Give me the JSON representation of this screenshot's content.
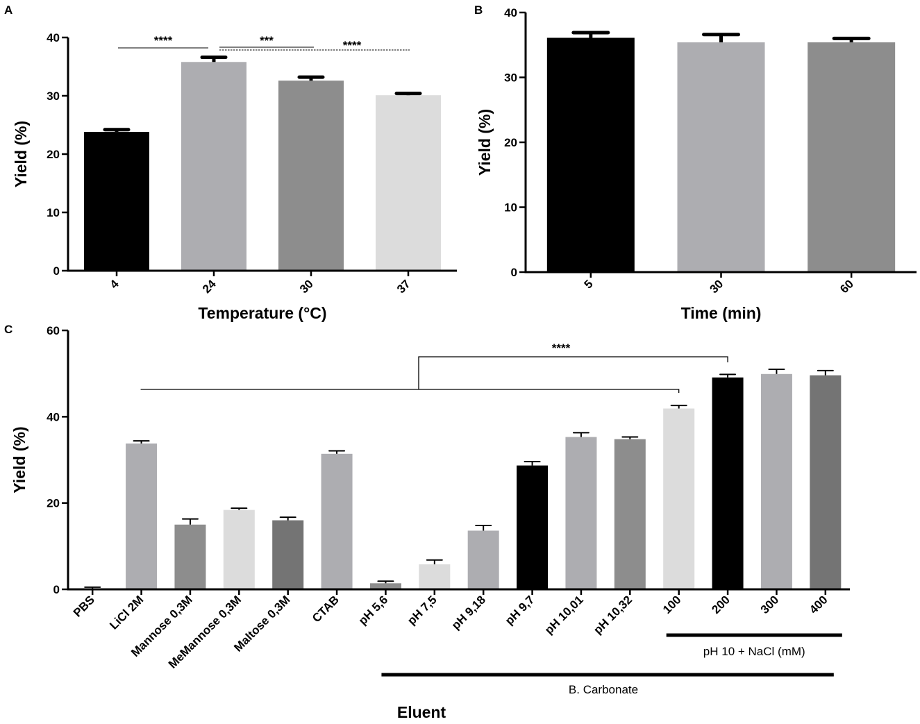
{
  "chart_data": [
    {
      "panel": "A",
      "type": "bar",
      "ylabel": "Yield (%)",
      "xlabel": "Temperature (°C)",
      "ylim": [
        0,
        40
      ],
      "yticks": [
        0,
        10,
        20,
        30,
        40
      ],
      "categories": [
        "4",
        "24",
        "30",
        "37"
      ],
      "values": [
        23.8,
        35.8,
        32.6,
        30.1
      ],
      "errors": [
        0.4,
        0.8,
        0.6,
        0.3
      ],
      "colors": [
        "#000000",
        "#adadb1",
        "#8d8d8d",
        "#dcdcdc"
      ],
      "significance": [
        {
          "from": 0,
          "to": 1,
          "label": "****",
          "style": "solid"
        },
        {
          "from": 1,
          "to": 2,
          "label": "***",
          "style": "solid"
        },
        {
          "from": 1,
          "to": 3,
          "label": "****",
          "style": "dashed"
        }
      ]
    },
    {
      "panel": "B",
      "type": "bar",
      "ylabel": "Yield (%)",
      "xlabel": "Time (min)",
      "ylim": [
        0,
        40
      ],
      "yticks": [
        0,
        10,
        20,
        30,
        40
      ],
      "categories": [
        "5",
        "30",
        "60"
      ],
      "values": [
        36.1,
        35.4,
        35.4
      ],
      "errors": [
        0.8,
        1.2,
        0.6
      ],
      "colors": [
        "#000000",
        "#adadb1",
        "#8d8d8d"
      ]
    },
    {
      "panel": "C",
      "type": "bar",
      "ylabel": "Yield (%)",
      "xlabel": "Eluent",
      "ylim": [
        0,
        60
      ],
      "yticks": [
        0,
        20,
        40,
        60
      ],
      "categories": [
        "PBS",
        "LiCl 2M",
        "Mannose 0,3M",
        "MeMannose 0,3M",
        "Maltose 0,3M",
        "CTAB",
        "pH 5,6",
        "pH 7,5",
        "pH 9,18",
        "pH 9,7",
        "pH 10,01",
        "pH 10,32",
        "100",
        "200",
        "300",
        "400"
      ],
      "values": [
        0.2,
        33.8,
        15.0,
        18.4,
        16.0,
        31.4,
        1.4,
        5.8,
        13.6,
        28.7,
        35.3,
        34.8,
        41.9,
        49.1,
        49.9,
        49.6
      ],
      "errors": [
        0.3,
        0.6,
        1.3,
        0.4,
        0.7,
        0.7,
        0.5,
        1.0,
        1.2,
        0.9,
        1.0,
        0.5,
        0.7,
        0.7,
        1.1,
        1.1
      ],
      "colors": [
        "#adadb1",
        "#adadb1",
        "#8d8d8d",
        "#dcdcdc",
        "#747474",
        "#adadb1",
        "#8d8d8d",
        "#dcdcdc",
        "#adadb1",
        "#000000",
        "#adadb1",
        "#8d8d8d",
        "#dcdcdc",
        "#000000",
        "#adadb1",
        "#747474"
      ],
      "significance": [
        {
          "groupA": [
            1,
            12
          ],
          "groupB": [
            13
          ],
          "label": "****"
        }
      ],
      "groups": [
        {
          "label": "pH 10 + NaCl (mM)",
          "from": 12,
          "to": 15
        },
        {
          "label": "B. Carbonate",
          "from": 6,
          "to": 15
        }
      ]
    }
  ]
}
